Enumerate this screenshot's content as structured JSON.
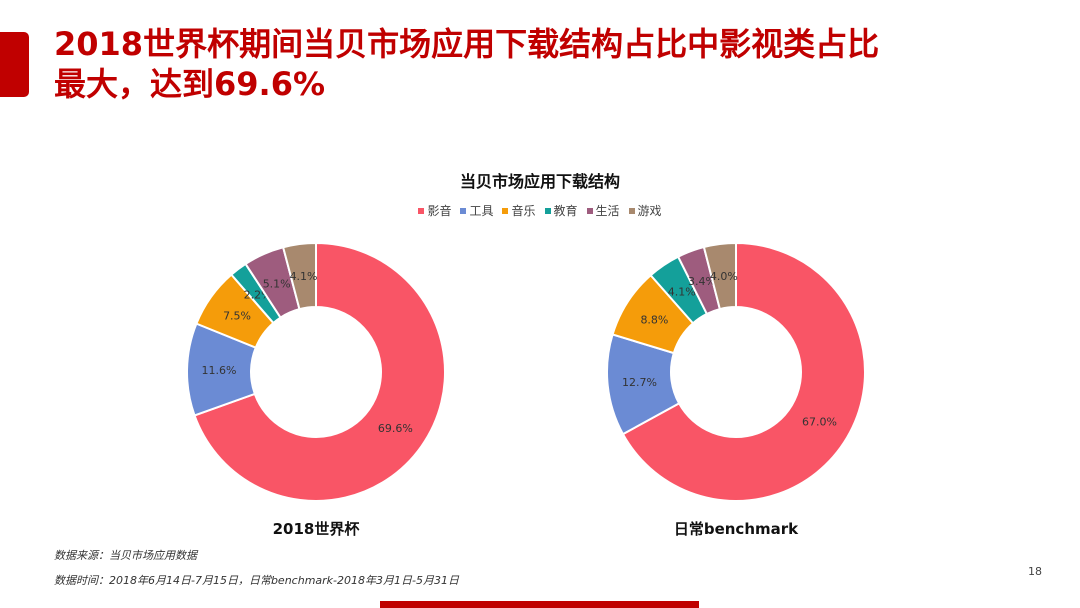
{
  "slide": {
    "title": "2018世界杯期间当贝市场应用下载结构占比中影视类占比最大，达到69.6%",
    "title_line1": "2018世界杯期间当贝市场应用下载结构占比中影视类占比",
    "title_line2": "最大，达到69.6%",
    "accent_color": "#c00000",
    "page_number": "18",
    "notes": {
      "source": "数据来源：当贝市场应用数据",
      "period": "数据时间：2018年6月14日-7月15日，日常benchmark-2018年3月1日-5月31日"
    }
  },
  "chart_data": [
    {
      "type": "pie",
      "variant": "donut",
      "title": "当贝市场应用下载结构",
      "subtitle": "2018世界杯",
      "categories": [
        "影音",
        "工具",
        "音乐",
        "教育",
        "生活",
        "游戏"
      ],
      "values": [
        69.6,
        11.6,
        7.5,
        2.2,
        5.1,
        4.1
      ],
      "labels": [
        "69.6%",
        "11.6%",
        "7.5%",
        "2.2%",
        "5.1%",
        "4.1%"
      ],
      "colors": [
        "#f95566",
        "#6b8bd4",
        "#f59c0a",
        "#14a09a",
        "#9e5c7e",
        "#a8896e"
      ],
      "legend_position": "top"
    },
    {
      "type": "pie",
      "variant": "donut",
      "title": "当贝市场应用下载结构",
      "subtitle": "日常benchmark",
      "categories": [
        "影音",
        "工具",
        "音乐",
        "教育",
        "生活",
        "游戏"
      ],
      "values": [
        67.0,
        12.7,
        8.8,
        4.1,
        3.4,
        4.0
      ],
      "labels": [
        "67.0%",
        "12.7%",
        "8.8%",
        "4.1%",
        "3.4%",
        "4.0%"
      ],
      "colors": [
        "#f95566",
        "#6b8bd4",
        "#f59c0a",
        "#14a09a",
        "#9e5c7e",
        "#a8896e"
      ],
      "legend_position": "top"
    }
  ],
  "chart_title": "当贝市场应用下载结构",
  "legend": [
    {
      "label": "影音",
      "color": "#f95566"
    },
    {
      "label": "工具",
      "color": "#6b8bd4"
    },
    {
      "label": "音乐",
      "color": "#f59c0a"
    },
    {
      "label": "教育",
      "color": "#14a09a"
    },
    {
      "label": "生活",
      "color": "#9e5c7e"
    },
    {
      "label": "游戏",
      "color": "#a8896e"
    }
  ],
  "captions": {
    "left": "2018世界杯",
    "right": "日常benchmark"
  }
}
